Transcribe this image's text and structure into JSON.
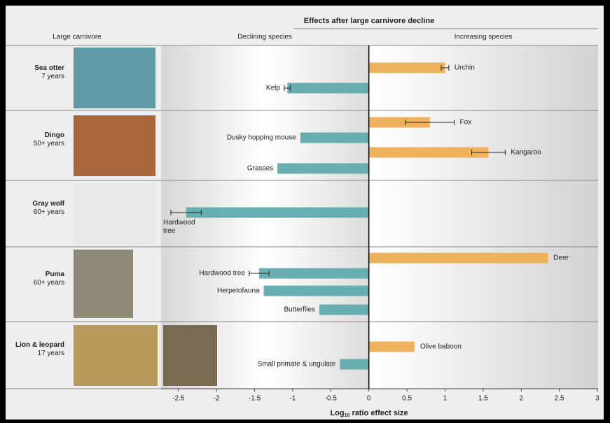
{
  "chart_data": {
    "type": "bar",
    "orientation": "horizontal",
    "title": "Effects after large carnivore decline",
    "column_headers": [
      "Large carnivore",
      "Declining species",
      "Increasing species"
    ],
    "x_label": [
      "Log",
      "10",
      " ratio effect size"
    ],
    "xlim": [
      -2.7,
      3
    ],
    "xticks": [
      -2.5,
      -2,
      -1.5,
      -1,
      -0.5,
      0,
      0.5,
      1,
      1.5,
      2,
      2.5,
      3
    ],
    "colors": {
      "declining": "#68adb0",
      "increasing": "#efb25c"
    },
    "groups": [
      {
        "name": "Sea otter",
        "duration": "7 years",
        "bars": [
          {
            "label": "Urchin",
            "value": 1.0,
            "error": 0.05
          },
          {
            "label": "Kelp",
            "value": -1.07,
            "error": 0.04
          }
        ]
      },
      {
        "name": "Dingo",
        "duration": "50+ years",
        "bars": [
          {
            "label": "Fox",
            "value": 0.8,
            "error": 0.32
          },
          {
            "label": "Dusky hopping mouse",
            "value": -0.9
          },
          {
            "label": "Kangaroo",
            "value": 1.57,
            "error": 0.22
          },
          {
            "label": "Grasses",
            "value": -1.2
          }
        ]
      },
      {
        "name": "Gray wolf",
        "duration": "60+ years",
        "bars": [
          {
            "label": "Hardwood tree",
            "value": -2.4,
            "error": 0.2
          }
        ]
      },
      {
        "name": "Puma",
        "duration": "60+ years",
        "bars": [
          {
            "label": "Deer",
            "value": 2.35
          },
          {
            "label": "Hardwood tree",
            "value": -1.44,
            "error": 0.13
          },
          {
            "label": "Herpetofauna",
            "value": -1.38
          },
          {
            "label": "Butterflies",
            "value": -0.65
          }
        ]
      },
      {
        "name": "Lion & leopard",
        "duration": "17 years",
        "bars": [
          {
            "label": "Olive baboon",
            "value": 0.6
          },
          {
            "label": "Small primate & ungulate",
            "value": -0.38
          }
        ]
      }
    ]
  }
}
